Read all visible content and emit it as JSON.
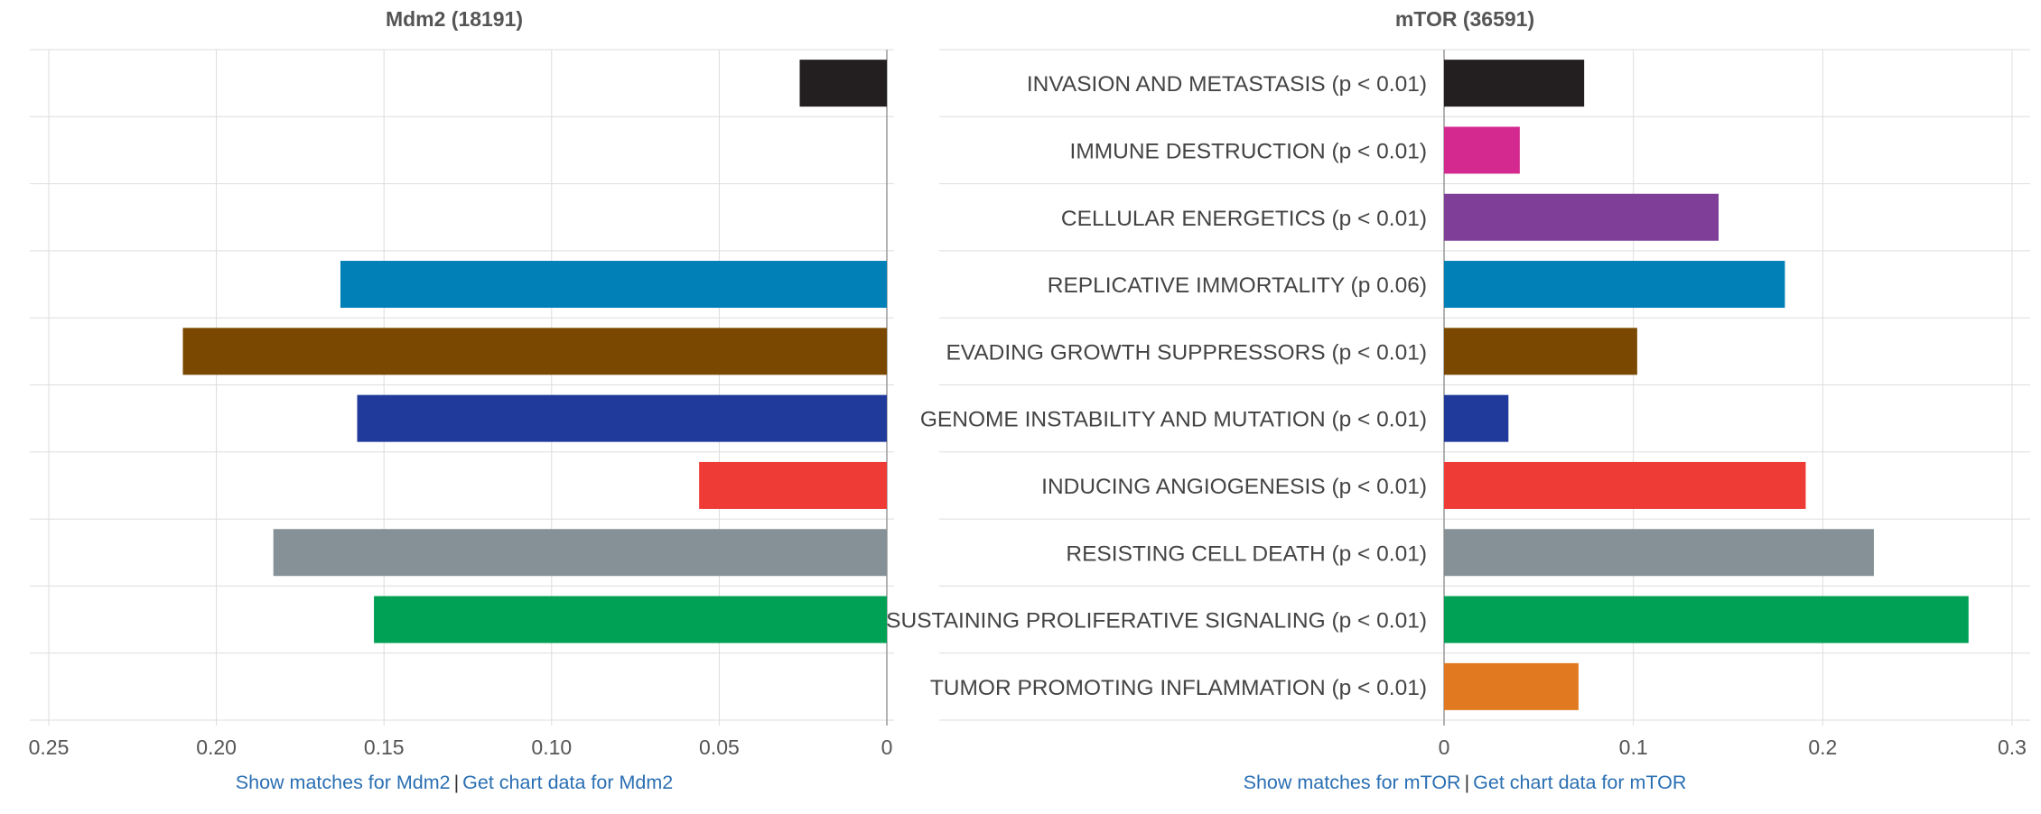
{
  "chart_data": [
    {
      "type": "bar",
      "orientation": "horizontal",
      "x_axis_reversed": true,
      "title": "Mdm2 (18191)",
      "categories": [
        "INVASION AND METASTASIS",
        "IMMUNE DESTRUCTION",
        "CELLULAR ENERGETICS",
        "REPLICATIVE IMMORTALITY",
        "EVADING GROWTH SUPPRESSORS",
        "GENOME INSTABILITY AND MUTATION",
        "INDUCING ANGIOGENESIS",
        "RESISTING CELL DEATH",
        "SUSTAINING PROLIFERATIVE SIGNALING",
        "TUMOR PROMOTING INFLAMMATION"
      ],
      "values": [
        0.026,
        0,
        0,
        0.163,
        0.21,
        0.158,
        0.056,
        0.183,
        0.153,
        0
      ],
      "colors": [
        "#231f20",
        "#d42a8f",
        "#7f3f98",
        "#0080b6",
        "#7a4800",
        "#1f3a9a",
        "#ef3b36",
        "#859197",
        "#00a055",
        "#e0791f"
      ],
      "xlim": [
        0,
        0.25
      ],
      "xticks": [
        0.25,
        0.2,
        0.15,
        0.1,
        0.05,
        0
      ],
      "xtick_labels": [
        "0.25",
        "0.20",
        "0.15",
        "0.10",
        "0.05",
        "0"
      ],
      "grid": true,
      "xlabel": "",
      "ylabel": ""
    },
    {
      "type": "bar",
      "orientation": "horizontal",
      "title": "mTOR (36591)",
      "categories": [
        "INVASION AND METASTASIS (p < 0.01)",
        "IMMUNE DESTRUCTION (p < 0.01)",
        "CELLULAR ENERGETICS (p < 0.01)",
        "REPLICATIVE IMMORTALITY (p 0.06)",
        "EVADING GROWTH SUPPRESSORS (p < 0.01)",
        "GENOME INSTABILITY AND MUTATION (p < 0.01)",
        "INDUCING ANGIOGENESIS (p < 0.01)",
        "RESISTING CELL DEATH (p < 0.01)",
        "SUSTAINING PROLIFERATIVE SIGNALING (p < 0.01)",
        "TUMOR PROMOTING INFLAMMATION (p < 0.01)"
      ],
      "values": [
        0.074,
        0.04,
        0.145,
        0.18,
        0.102,
        0.034,
        0.191,
        0.227,
        0.277,
        0.071
      ],
      "colors": [
        "#231f20",
        "#d42a8f",
        "#7f3f98",
        "#0080b6",
        "#7a4800",
        "#1f3a9a",
        "#ef3b36",
        "#859197",
        "#00a055",
        "#e0791f"
      ],
      "xlim": [
        0,
        0.3
      ],
      "xticks": [
        0,
        0.1,
        0.2,
        0.3
      ],
      "xtick_labels": [
        "0",
        "0.1",
        "0.2",
        "0.3"
      ],
      "grid": true,
      "xlabel": "",
      "ylabel": ""
    }
  ],
  "links": {
    "left": {
      "show": "Show matches for Mdm2",
      "sep": "|",
      "get": "Get chart data for Mdm2"
    },
    "right": {
      "show": "Show matches for mTOR",
      "sep": "|",
      "get": "Get chart data for mTOR"
    }
  }
}
